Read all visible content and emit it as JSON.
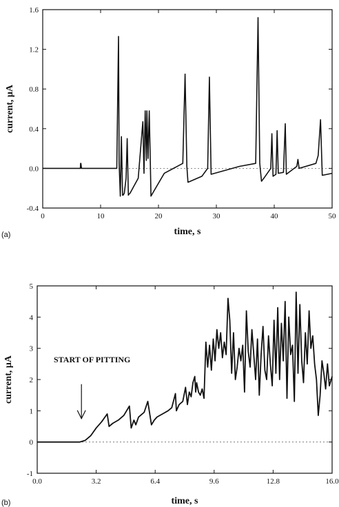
{
  "chart_data": [
    {
      "type": "line",
      "panel_label": "(a)",
      "xlabel": "time, s",
      "ylabel": "current, μA",
      "xlim": [
        0,
        50
      ],
      "ylim": [
        -0.4,
        1.6
      ],
      "xticks": [
        "0",
        "10",
        "20",
        "30",
        "40",
        "50"
      ],
      "yticks": [
        "-0.4",
        "0.0",
        "0.4",
        "0.8",
        "1.2",
        "1.6"
      ],
      "zero_line": "dashed",
      "series": [
        {
          "x": [
            0,
            6.5,
            6.55,
            6.6,
            6.7,
            12.8,
            13.1,
            13.2,
            13.4,
            13.6,
            13.8,
            13.9,
            14.1,
            14.4,
            14.6,
            14.8,
            14.9,
            15.1,
            16.5,
            17.3,
            17.5,
            17.7,
            17.9,
            18.0,
            18.2,
            18.4,
            18.6,
            18.7,
            19,
            21,
            24.2,
            24.6,
            24.9,
            25.1,
            27.5,
            28.5,
            28.8,
            29.1,
            34,
            36.8,
            37.2,
            37.5,
            37.8,
            38.2,
            39.4,
            39.6,
            39.8,
            40.3,
            40.5,
            40.7,
            41.6,
            41.9,
            42.1,
            42.3,
            43.9,
            44.1,
            44.3,
            47.2,
            47.6,
            48.0,
            48.3,
            50
          ],
          "y": [
            0,
            0,
            0.05,
            0.05,
            0,
            0,
            1.33,
            0.05,
            -0.28,
            0.32,
            -0.27,
            -0.27,
            -0.25,
            -0.1,
            0.3,
            -0.27,
            -0.26,
            -0.25,
            -0.1,
            0.47,
            -0.05,
            0.58,
            0.08,
            0.58,
            0.1,
            0.58,
            0.05,
            -0.28,
            -0.25,
            -0.05,
            0.05,
            0.95,
            0.02,
            -0.14,
            -0.08,
            0.0,
            0.92,
            -0.06,
            0.02,
            0.05,
            1.52,
            0.05,
            -0.13,
            -0.1,
            0.0,
            0.35,
            -0.08,
            -0.06,
            0.38,
            -0.05,
            -0.04,
            0.45,
            -0.06,
            -0.05,
            0.02,
            0.09,
            0.0,
            0.05,
            0.13,
            0.49,
            -0.07,
            -0.05
          ]
        }
      ]
    },
    {
      "type": "line",
      "panel_label": "(b)",
      "xlabel": "time, s",
      "ylabel": "current, μA",
      "xlim": [
        0,
        16
      ],
      "ylim": [
        -1,
        5
      ],
      "xticks": [
        "0.0",
        "3.2",
        "6.4",
        "9.6",
        "12.8",
        "16.0"
      ],
      "yticks": [
        "-1",
        "0",
        "1",
        "2",
        "3",
        "4",
        "5"
      ],
      "zero_line": "dashed",
      "annotation": {
        "text": "START OF PITTING",
        "x": 2.4,
        "y": 0
      },
      "series": [
        {
          "x": [
            0,
            2.0,
            2.3,
            2.6,
            2.9,
            3.2,
            3.5,
            3.8,
            3.9,
            4.1,
            4.4,
            4.7,
            5.0,
            5.1,
            5.25,
            5.35,
            5.5,
            5.8,
            6.0,
            6.2,
            6.35,
            6.5,
            6.8,
            7.1,
            7.3,
            7.5,
            7.55,
            7.7,
            7.9,
            8.05,
            8.15,
            8.25,
            8.35,
            8.45,
            8.55,
            8.6,
            8.65,
            8.75,
            8.85,
            8.95,
            9.05,
            9.15,
            9.25,
            9.35,
            9.45,
            9.55,
            9.65,
            9.75,
            9.85,
            9.95,
            10.05,
            10.15,
            10.25,
            10.35,
            10.45,
            10.55,
            10.65,
            10.75,
            10.85,
            10.95,
            11.05,
            11.15,
            11.25,
            11.35,
            11.45,
            11.55,
            11.65,
            11.75,
            11.85,
            11.95,
            12.05,
            12.15,
            12.25,
            12.35,
            12.45,
            12.55,
            12.65,
            12.75,
            12.85,
            12.95,
            13.05,
            13.15,
            13.25,
            13.35,
            13.45,
            13.55,
            13.65,
            13.75,
            13.85,
            13.95,
            14.05,
            14.15,
            14.25,
            14.35,
            14.45,
            14.55,
            14.65,
            14.75,
            14.85,
            14.95,
            15.05,
            15.15,
            15.25,
            15.35,
            15.45,
            15.55,
            15.65,
            15.75,
            15.85,
            16.0
          ],
          "y": [
            0,
            0,
            0,
            0.05,
            0.2,
            0.45,
            0.65,
            0.9,
            0.5,
            0.6,
            0.7,
            0.85,
            1.15,
            0.45,
            0.7,
            0.55,
            0.8,
            0.95,
            1.3,
            0.55,
            0.7,
            0.8,
            0.9,
            1.0,
            1.1,
            1.55,
            1.0,
            1.2,
            1.3,
            1.75,
            1.2,
            1.6,
            1.45,
            1.9,
            2.1,
            1.6,
            1.9,
            1.6,
            1.5,
            1.7,
            1.4,
            3.2,
            2.4,
            3.1,
            2.3,
            3.3,
            2.6,
            3.6,
            3.0,
            3.5,
            2.7,
            3.2,
            2.8,
            4.6,
            3.9,
            2.2,
            3.5,
            2.0,
            2.4,
            3.0,
            2.6,
            3.1,
            1.6,
            4.2,
            2.9,
            2.4,
            3.6,
            2.8,
            2.0,
            3.3,
            1.5,
            2.8,
            3.7,
            2.3,
            2.0,
            3.4,
            2.5,
            1.8,
            3.9,
            2.2,
            4.3,
            2.0,
            3.8,
            2.6,
            4.5,
            1.4,
            4.0,
            2.8,
            3.1,
            1.3,
            4.8,
            2.2,
            4.4,
            2.6,
            1.9,
            3.5,
            2.5,
            4.2,
            3.0,
            3.4,
            2.5,
            2.0,
            0.85,
            1.5,
            2.6,
            2.2,
            1.7,
            2.5,
            1.8,
            2.1
          ]
        }
      ]
    }
  ]
}
